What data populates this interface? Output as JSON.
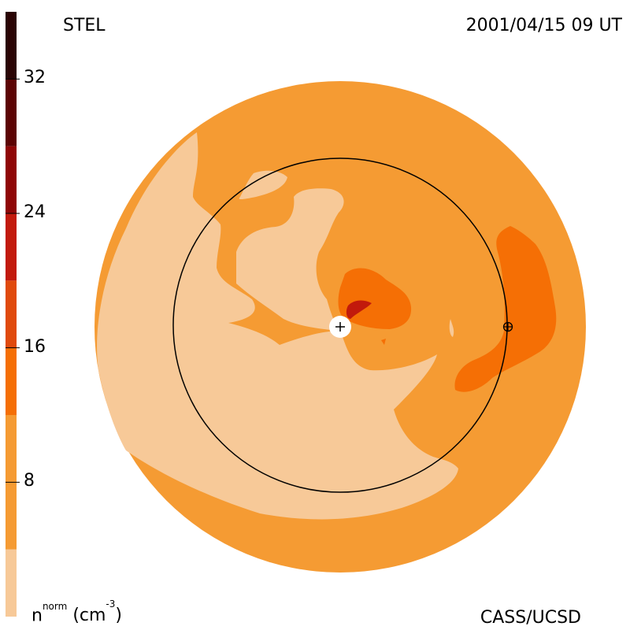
{
  "chart_data": {
    "type": "heatmap",
    "title_left": "STEL",
    "title_right": "2001/04/15 09 UT",
    "footer": "CASS/UCSD",
    "colorbar": {
      "label_base": "n",
      "label_sup": "norm",
      "label_unit_base": "(cm",
      "label_unit_sup": "-3",
      "label_unit_close": ")",
      "range": [
        0,
        36
      ],
      "ticks": [
        {
          "value": 8,
          "label": "8"
        },
        {
          "value": 16,
          "label": "16"
        },
        {
          "value": 24,
          "label": "24"
        },
        {
          "value": 32,
          "label": "32"
        }
      ],
      "levels": [
        {
          "from": 0,
          "to": 4,
          "color": "#f7c998"
        },
        {
          "from": 4,
          "to": 12,
          "color": "#f59b33"
        },
        {
          "from": 12,
          "to": 16,
          "color": "#f56f05"
        },
        {
          "from": 16,
          "to": 20,
          "color": "#e04a0c"
        },
        {
          "from": 20,
          "to": 24,
          "color": "#c21a0c"
        },
        {
          "from": 24,
          "to": 28,
          "color": "#8f0606"
        },
        {
          "from": 28,
          "to": 32,
          "color": "#5c0303"
        },
        {
          "from": 32,
          "to": 36,
          "color": "#2a0404"
        }
      ]
    },
    "markers": [
      {
        "name": "sun",
        "symbol": "+"
      },
      {
        "name": "earth",
        "symbol": "⊕"
      }
    ]
  }
}
